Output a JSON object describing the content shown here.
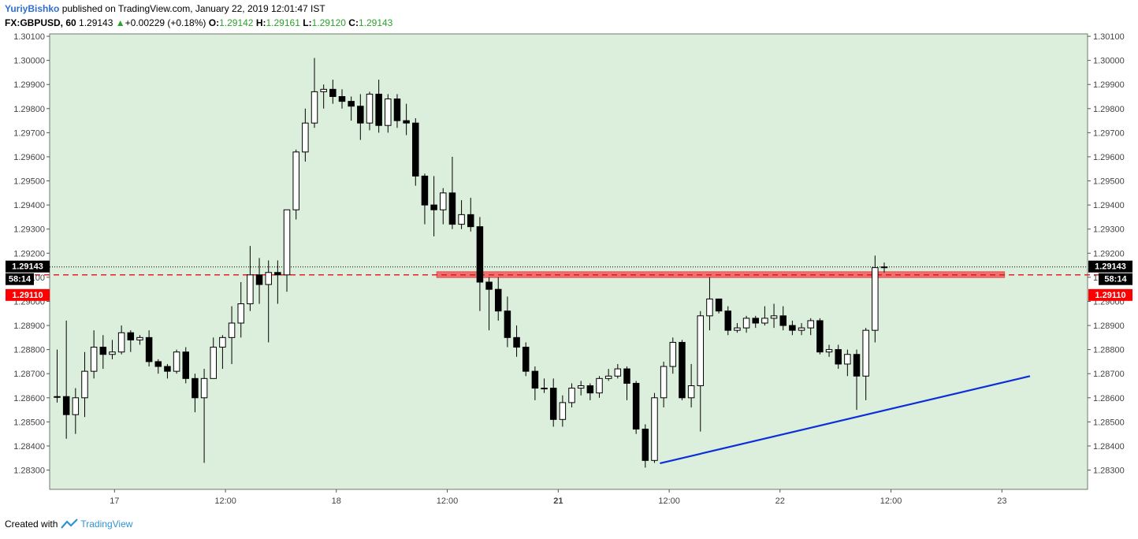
{
  "header": {
    "author": "YuriyBishko",
    "published": "published on TradingView.com, January 22, 2019 12:01:47 IST",
    "symbol": "FX:GBPUSD, 60",
    "price": "1.29143",
    "change_arrow": "▲",
    "change": "+0.00229 (+0.18%)",
    "o_label": "O:",
    "o": "1.29142",
    "h_label": "H:",
    "h": "1.29161",
    "l_label": "L:",
    "l": "1.29120",
    "c_label": "C:",
    "c": "1.29143"
  },
  "footer": {
    "created_with": "Created with",
    "brand": "TradingView"
  },
  "colors": {
    "plot_bg": "#dcefdc",
    "up_fill": "#ffffff",
    "down_fill": "#000000",
    "zone_fill": "#f07070",
    "trend_line": "#0d2fd8",
    "dashed_line": "#e01010",
    "price_badge": "#000000",
    "level_badge": "#ff0000"
  },
  "chart_data": {
    "type": "candlestick",
    "y_ticks": [
      "1.28300",
      "1.28400",
      "1.28500",
      "1.28600",
      "1.28700",
      "1.28800",
      "1.28900",
      "1.29000",
      "1.29100",
      "1.29200",
      "1.29300",
      "1.29400",
      "1.29500",
      "1.29600",
      "1.29700",
      "1.29800",
      "1.29900",
      "1.30000",
      "1.30100"
    ],
    "x_ticks": [
      {
        "label": "17",
        "bold": false,
        "pos": 0.0625
      },
      {
        "label": "12:00",
        "bold": false,
        "pos": 0.1694
      },
      {
        "label": "18",
        "bold": false,
        "pos": 0.2762
      },
      {
        "label": "12:00",
        "bold": false,
        "pos": 0.3831
      },
      {
        "label": "21",
        "bold": true,
        "pos": 0.49
      },
      {
        "label": "12:00",
        "bold": false,
        "pos": 0.5969
      },
      {
        "label": "22",
        "bold": false,
        "pos": 0.7037
      },
      {
        "label": "12:00",
        "bold": false,
        "pos": 0.8106
      },
      {
        "label": "23",
        "bold": false,
        "pos": 0.9175
      }
    ],
    "ylim": [
      1.2822,
      1.3011
    ],
    "price_line": 1.29143,
    "dashed_level": 1.2911,
    "countdown": "58:14",
    "price_label": "1.29143",
    "level_label": "1.29110",
    "zone": {
      "x_start": 0.373,
      "x_end": 0.92,
      "y_low": 1.29099,
      "y_high": 1.29123
    },
    "trend_line": {
      "x1": 0.588,
      "y1": 1.28328,
      "x2": 0.9445,
      "y2": 1.2869
    },
    "candles": [
      [
        1.28605,
        1.28605,
        1.288,
        1.2858
      ],
      [
        1.28605,
        1.2853,
        1.2892,
        1.2843
      ],
      [
        1.2853,
        1.286,
        1.2864,
        1.2845
      ],
      [
        1.286,
        1.2871,
        1.2879,
        1.2852
      ],
      [
        1.2871,
        1.2881,
        1.2888,
        1.2868
      ],
      [
        1.2881,
        1.2878,
        1.2886,
        1.2872
      ],
      [
        1.2878,
        1.2879,
        1.2884,
        1.2876
      ],
      [
        1.2879,
        1.2887,
        1.289,
        1.2878
      ],
      [
        1.2887,
        1.2884,
        1.2888,
        1.2879
      ],
      [
        1.2884,
        1.2885,
        1.2886,
        1.2882
      ],
      [
        1.2885,
        1.2875,
        1.2888,
        1.2873
      ],
      [
        1.2875,
        1.2873,
        1.2876,
        1.287
      ],
      [
        1.2873,
        1.2871,
        1.2874,
        1.2868
      ],
      [
        1.2871,
        1.2879,
        1.288,
        1.287
      ],
      [
        1.2879,
        1.2868,
        1.2881,
        1.2866
      ],
      [
        1.2868,
        1.286,
        1.287,
        1.2854
      ],
      [
        1.286,
        1.2868,
        1.2872,
        1.2833
      ],
      [
        1.2868,
        1.2881,
        1.2885,
        1.2868
      ],
      [
        1.2881,
        1.2885,
        1.2886,
        1.2872
      ],
      [
        1.2885,
        1.2891,
        1.2898,
        1.2874
      ],
      [
        1.2891,
        1.2899,
        1.2908,
        1.2885
      ],
      [
        1.2899,
        1.2911,
        1.2923,
        1.2896
      ],
      [
        1.2911,
        1.2907,
        1.2918,
        1.2899
      ],
      [
        1.2907,
        1.2912,
        1.2917,
        1.2883
      ],
      [
        1.2912,
        1.2911,
        1.2917,
        1.2899
      ],
      [
        1.2911,
        1.2938,
        1.2938,
        1.2904
      ],
      [
        1.2938,
        1.2962,
        1.2963,
        1.2934
      ],
      [
        1.2962,
        1.2974,
        1.298,
        1.2958
      ],
      [
        1.2974,
        1.2987,
        1.3001,
        1.2972
      ],
      [
        1.2987,
        1.2988,
        1.299,
        1.298
      ],
      [
        1.2988,
        1.2985,
        1.2992,
        1.2982
      ],
      [
        1.2985,
        1.2983,
        1.2988,
        1.298
      ],
      [
        1.2983,
        1.2981,
        1.2985,
        1.2975
      ],
      [
        1.2981,
        1.2974,
        1.2986,
        1.2967
      ],
      [
        1.2974,
        1.2986,
        1.2987,
        1.2971
      ],
      [
        1.2986,
        1.2973,
        1.2992,
        1.297
      ],
      [
        1.2973,
        1.2984,
        1.2986,
        1.297
      ],
      [
        1.2984,
        1.2975,
        1.2986,
        1.2972
      ],
      [
        1.2975,
        1.2974,
        1.2982,
        1.2969
      ],
      [
        1.2974,
        1.2952,
        1.2976,
        1.2948
      ],
      [
        1.2952,
        1.294,
        1.2953,
        1.2932
      ],
      [
        1.294,
        1.2938,
        1.2952,
        1.2927
      ],
      [
        1.2938,
        1.2945,
        1.2947,
        1.2932
      ],
      [
        1.2945,
        1.2932,
        1.296,
        1.293
      ],
      [
        1.2932,
        1.2936,
        1.2942,
        1.293
      ],
      [
        1.2936,
        1.2931,
        1.2943,
        1.2929
      ],
      [
        1.2931,
        1.2908,
        1.2935,
        1.2896
      ],
      [
        1.2908,
        1.2905,
        1.291,
        1.2888
      ],
      [
        1.2905,
        1.2896,
        1.291,
        1.2892
      ],
      [
        1.2896,
        1.2885,
        1.2902,
        1.2881
      ],
      [
        1.2885,
        1.2881,
        1.289,
        1.2877
      ],
      [
        1.2881,
        1.2871,
        1.2883,
        1.2869
      ],
      [
        1.2871,
        1.2864,
        1.2873,
        1.2859
      ],
      [
        1.2864,
        1.2864,
        1.2868,
        1.2862
      ],
      [
        1.2864,
        1.2851,
        1.2868,
        1.2848
      ],
      [
        1.2851,
        1.2858,
        1.2861,
        1.2848
      ],
      [
        1.2858,
        1.2864,
        1.2866,
        1.2856
      ],
      [
        1.2864,
        1.2865,
        1.2867,
        1.2861
      ],
      [
        1.2865,
        1.2862,
        1.2866,
        1.2859
      ],
      [
        1.2862,
        1.2868,
        1.2869,
        1.286
      ],
      [
        1.2868,
        1.2869,
        1.2872,
        1.2867
      ],
      [
        1.2869,
        1.2872,
        1.2874,
        1.2868
      ],
      [
        1.2872,
        1.2866,
        1.2873,
        1.2859
      ],
      [
        1.2866,
        1.2847,
        1.2867,
        1.2845
      ],
      [
        1.2847,
        1.2834,
        1.2849,
        1.2831
      ],
      [
        1.2834,
        1.286,
        1.2862,
        1.2833
      ],
      [
        1.286,
        1.2873,
        1.2875,
        1.2856
      ],
      [
        1.2873,
        1.2883,
        1.2885,
        1.287
      ],
      [
        1.2883,
        1.286,
        1.2884,
        1.2859
      ],
      [
        1.286,
        1.2865,
        1.2874,
        1.2856
      ],
      [
        1.2865,
        1.2894,
        1.2896,
        1.2846
      ],
      [
        1.2894,
        1.2901,
        1.291,
        1.2888
      ],
      [
        1.2901,
        1.2896,
        1.2901,
        1.2895
      ],
      [
        1.2896,
        1.2888,
        1.2898,
        1.2886
      ],
      [
        1.2888,
        1.2889,
        1.2891,
        1.2887
      ],
      [
        1.2889,
        1.2893,
        1.2894,
        1.2887
      ],
      [
        1.2893,
        1.2891,
        1.2894,
        1.2889
      ],
      [
        1.2891,
        1.2893,
        1.2898,
        1.289
      ],
      [
        1.2893,
        1.2894,
        1.2899,
        1.2889
      ],
      [
        1.2894,
        1.289,
        1.2898,
        1.2888
      ],
      [
        1.289,
        1.2888,
        1.2892,
        1.2886
      ],
      [
        1.2888,
        1.2889,
        1.2891,
        1.2886
      ],
      [
        1.2889,
        1.2892,
        1.2893,
        1.2886
      ],
      [
        1.2892,
        1.2879,
        1.2893,
        1.2878
      ],
      [
        1.2879,
        1.288,
        1.2882,
        1.2877
      ],
      [
        1.288,
        1.2874,
        1.2882,
        1.2872
      ],
      [
        1.2874,
        1.2878,
        1.288,
        1.2869
      ],
      [
        1.2878,
        1.2869,
        1.288,
        1.2855
      ],
      [
        1.2869,
        1.2888,
        1.2889,
        1.2859
      ],
      [
        1.2888,
        1.2914,
        1.2919,
        1.2883
      ],
      [
        1.29142,
        1.29143,
        1.29161,
        1.2912
      ]
    ]
  }
}
